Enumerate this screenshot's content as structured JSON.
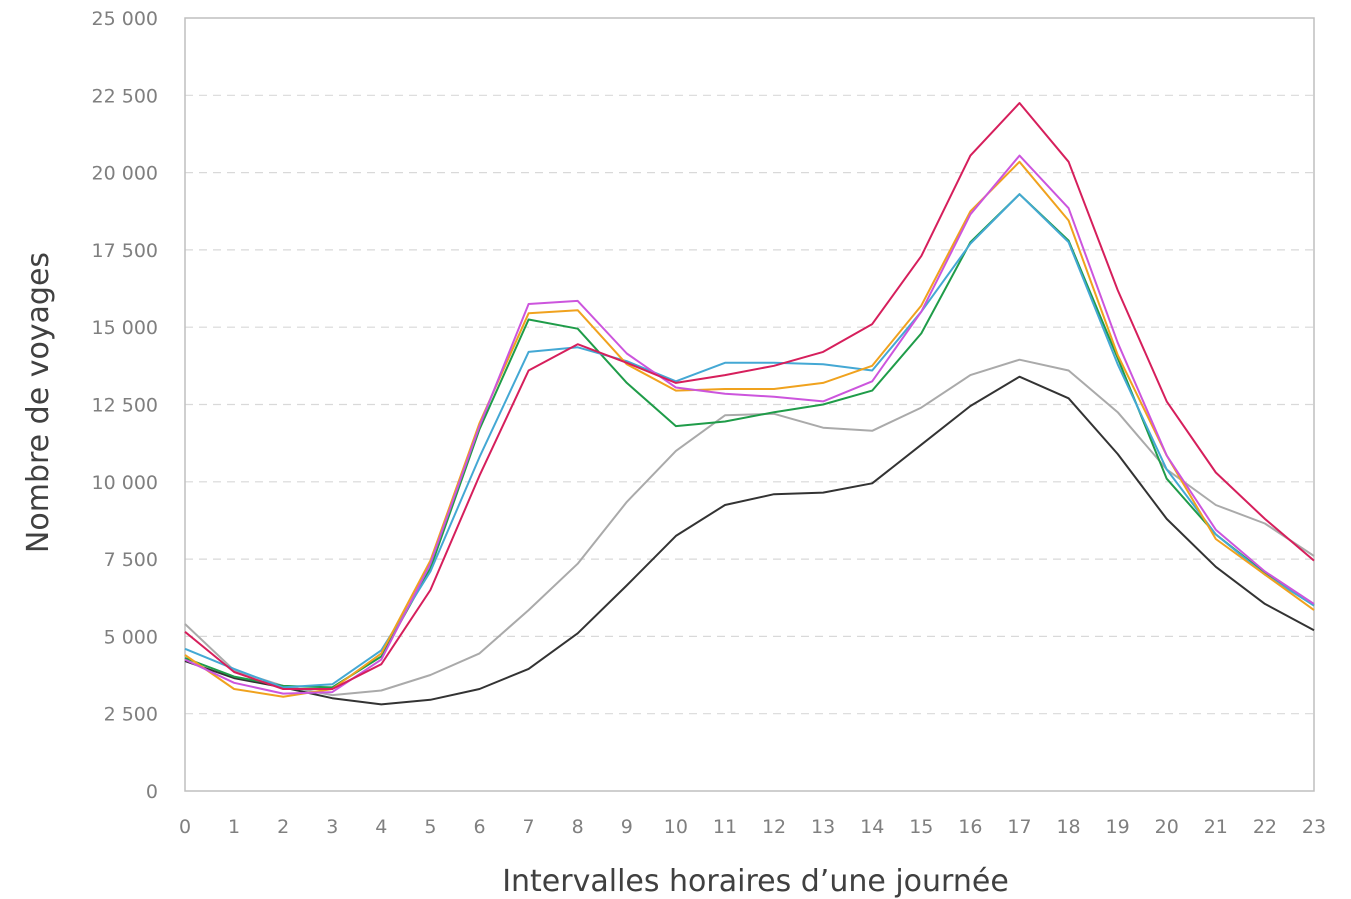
{
  "chart_data": {
    "type": "line",
    "xlabel": "Intervalles horaires d’une journée",
    "ylabel": "Nombre de voyages",
    "x": [
      0,
      1,
      2,
      3,
      4,
      5,
      6,
      7,
      8,
      9,
      10,
      11,
      12,
      13,
      14,
      15,
      16,
      17,
      18,
      19,
      20,
      21,
      22,
      23
    ],
    "ylim": [
      0,
      25000
    ],
    "yticks": [
      0,
      2500,
      5000,
      7500,
      10000,
      12500,
      15000,
      17500,
      20000,
      22500,
      25000
    ],
    "ytick_labels": [
      "0",
      "2 500",
      "5 000",
      "7 500",
      "10 000",
      "12 500",
      "15 000",
      "17 500",
      "20 000",
      "22 500",
      "25 000"
    ],
    "grid": true,
    "legend": "none",
    "series": [
      {
        "color": "#aaaaaa",
        "values": [
          5400,
          3900,
          3400,
          3100,
          3250,
          3750,
          4450,
          5850,
          7350,
          9350,
          11000,
          12150,
          12200,
          11750,
          11650,
          12400,
          13450,
          13950,
          13600,
          12250,
          10400,
          9250,
          8650,
          7600
        ]
      },
      {
        "color": "#333333",
        "values": [
          4200,
          3650,
          3350,
          3000,
          2800,
          2950,
          3300,
          3950,
          5100,
          6650,
          8250,
          9250,
          9600,
          9650,
          9950,
          11200,
          12450,
          13400,
          12700,
          10900,
          8800,
          7250,
          6050,
          5200
        ]
      },
      {
        "color": "#1f9c49",
        "values": [
          4300,
          3700,
          3400,
          3350,
          4350,
          7200,
          11700,
          15250,
          14950,
          13200,
          11800,
          11950,
          12250,
          12500,
          12950,
          14800,
          17750,
          19300,
          17800,
          14000,
          10100,
          8300,
          7050,
          6000
        ]
      },
      {
        "color": "#44a8d4",
        "values": [
          4600,
          3950,
          3350,
          3450,
          4550,
          7100,
          10800,
          14200,
          14350,
          13900,
          13250,
          13850,
          13850,
          13800,
          13600,
          15500,
          17700,
          19300,
          17750,
          13800,
          10400,
          8300,
          7000,
          6000
        ]
      },
      {
        "color": "#f0a21e",
        "values": [
          4400,
          3300,
          3050,
          3300,
          4450,
          7450,
          11900,
          15450,
          15550,
          13800,
          12950,
          13000,
          13000,
          13200,
          13750,
          15700,
          18750,
          20350,
          18450,
          14100,
          10850,
          8150,
          7000,
          5850
        ]
      },
      {
        "color": "#cc55dd",
        "values": [
          4250,
          3500,
          3150,
          3200,
          4250,
          7350,
          11800,
          15750,
          15850,
          14150,
          13050,
          12850,
          12750,
          12600,
          13250,
          15500,
          18650,
          20550,
          18850,
          14500,
          10850,
          8450,
          7100,
          6050
        ]
      },
      {
        "color": "#d61f5c",
        "values": [
          5150,
          3850,
          3300,
          3300,
          4100,
          6500,
          10200,
          13600,
          14450,
          13850,
          13200,
          13450,
          13750,
          14200,
          15100,
          17300,
          20550,
          22250,
          20350,
          16200,
          12600,
          10300,
          8800,
          7450
        ]
      }
    ]
  }
}
